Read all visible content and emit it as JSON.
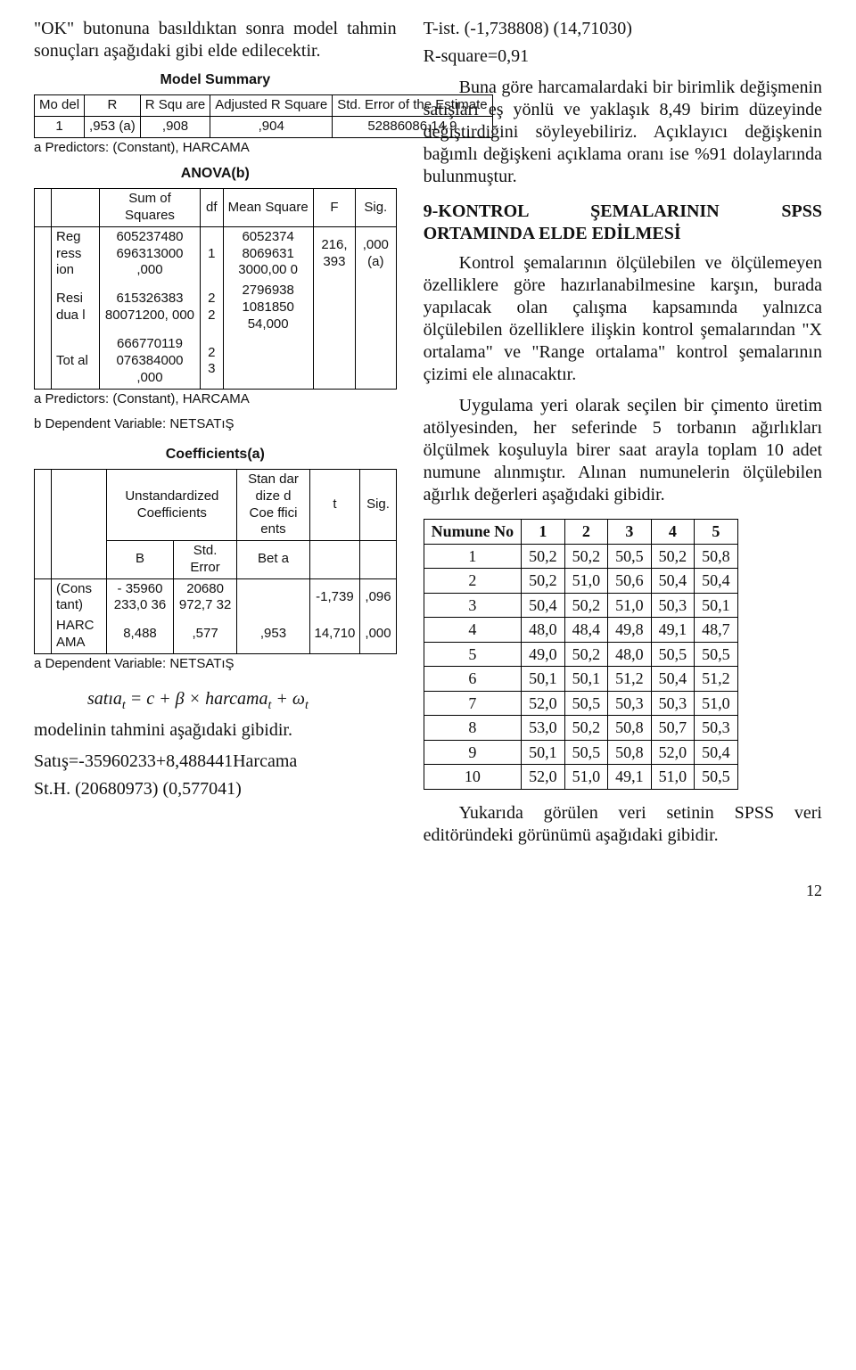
{
  "intro": "\"OK\" butonuna basıldıktan sonra model tahmin sonuçları aşağıdaki gibi elde edilecektir.",
  "model_summary_title": "Model Summary",
  "ms": {
    "h_model": "Mo del",
    "h_r": "R",
    "h_rsq": "R Squ are",
    "h_adj": "Adjusted R Square",
    "h_se": "Std. Error of the Estimate",
    "row1_model": "1",
    "row1_r": ",953 (a)",
    "row1_rsq": ",908",
    "row1_adj": ",904",
    "row1_se": "52886086,14 9"
  },
  "ms_note": "a Predictors: (Constant), HARCAMA",
  "anova_title": "ANOVA(b)",
  "an": {
    "h_ss": "Sum of Squares",
    "h_df": "df",
    "h_ms": "Mean Square",
    "h_f": "F",
    "h_sig": "Sig.",
    "r1_lbl": "Reg ress ion",
    "r1_ss": "605237480 696313000 ,000",
    "r1_df": "1",
    "r1_ms": "6052374 8069631 3000,00 0",
    "r1_f": "216, 393",
    "r1_sig": ",000 (a)",
    "r2_lbl": "Resi dua l",
    "r2_ss": "615326383 80071200, 000",
    "r2_df": "2 2",
    "r2_ms": "2796938 1081850 54,000",
    "r3_lbl": "Tot al",
    "r3_ss": "666770119 076384000 ,000",
    "r3_df": "2 3"
  },
  "an_note1": "a Predictors: (Constant), HARCAMA",
  "an_note2": "b Dependent Variable: NETSATıŞ",
  "coef_title": "Coefficients(a)",
  "co": {
    "h_unstd": "Unstandardized Coefficients",
    "h_std": "Stan dar dize d Coe ffici ents",
    "h_t": "t",
    "h_sig": "Sig.",
    "h_b": "B",
    "h_se": "Std. Error",
    "h_beta": "Bet a",
    "r1_lbl": "(Cons tant)",
    "r1_b": "- 35960 233,0 36",
    "r1_se": "20680 972,7 32",
    "r1_beta": "",
    "r1_t": "-1,739",
    "r1_sig": ",096",
    "r2_lbl": "HARC AMA",
    "r2_b": "8,488",
    "r2_se": ",577",
    "r2_beta": ",953",
    "r2_t": "14,710",
    "r2_sig": ",000"
  },
  "co_note": "a Dependent Variable: NETSATıŞ",
  "eq_tail": "modelinin tahmini aşağıdaki gibidir.",
  "satis_line": "Satış=-35960233+8,488441Harcama",
  "sth_line": "St.H.  (20680973) (0,577041)",
  "tist_line": "T-ist.  (-1,738808) (14,71030)",
  "rsq_line": "R-square=0,91",
  "para1": "Buna göre harcamalardaki bir birimlik değişmenin satışları eş yönlü ve yaklaşık 8,49 birim düzeyinde değiştirdiğini söyleyebiliriz. Açıklayıcı değişkenin bağımlı değişkeni açıklama oranı ise %91 dolaylarında bulunmuştur.",
  "sec9": "9-KONTROL ŞEMALARININ SPSS ORTAMINDA ELDE EDİLMESİ",
  "para2": "Kontrol şemalarının ölçülebilen ve ölçülemeyen özelliklere göre hazırlanabilmesine karşın, burada yapılacak olan çalışma kapsamında yalnızca ölçülebilen özelliklere ilişkin kontrol şemalarından \"X ortalama\" ve \"Range ortalama\" kontrol şemalarının çizimi ele alınacaktır.",
  "para3": "Uygulama yeri olarak seçilen bir çimento üretim atölyesinden, her seferinde 5 torbanın ağırlıkları ölçülmek koşuluyla birer saat arayla toplam 10 adet numune alınmıştır. Alınan numunelerin ölçülebilen ağırlık değerleri aşağıdaki gibidir.",
  "nu": {
    "h_no": "Numune No",
    "h1": "1",
    "h2": "2",
    "h3": "3",
    "h4": "4",
    "h5": "5",
    "rows": [
      [
        "1",
        "50,2",
        "50,2",
        "50,5",
        "50,2",
        "50,8"
      ],
      [
        "2",
        "50,2",
        "51,0",
        "50,6",
        "50,4",
        "50,4"
      ],
      [
        "3",
        "50,4",
        "50,2",
        "51,0",
        "50,3",
        "50,1"
      ],
      [
        "4",
        "48,0",
        "48,4",
        "49,8",
        "49,1",
        "48,7"
      ],
      [
        "5",
        "49,0",
        "50,2",
        "48,0",
        "50,5",
        "50,5"
      ],
      [
        "6",
        "50,1",
        "50,1",
        "51,2",
        "50,4",
        "51,2"
      ],
      [
        "7",
        "52,0",
        "50,5",
        "50,3",
        "50,3",
        "51,0"
      ],
      [
        "8",
        "53,0",
        "50,2",
        "50,8",
        "50,7",
        "50,3"
      ],
      [
        "9",
        "50,1",
        "50,5",
        "50,8",
        "52,0",
        "50,4"
      ],
      [
        "10",
        "52,0",
        "51,0",
        "49,1",
        "51,0",
        "50,5"
      ]
    ]
  },
  "para4": "Yukarıda görülen veri setinin SPSS veri editöründeki görünümü aşağıdaki gibidir.",
  "page_num": "12"
}
